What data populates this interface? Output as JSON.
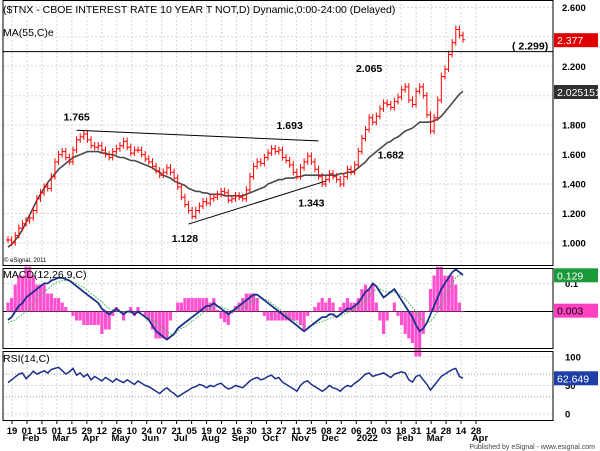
{
  "header": {
    "title": "($TNX - CBOE INTEREST RATE 10 YEAR T NOT,D) Dynamic,0:00-24:00 (Delayed)",
    "ma_label": "MA(55,C)e"
  },
  "footer": {
    "copyright": "© eSignal, 2011",
    "published": "Published by eSignal - www.esignal.com"
  },
  "colors": {
    "grid": "#d7d7d7",
    "price": "#ff0000",
    "ma": "#4a4a4a",
    "macd": "#1a2f8a",
    "signal": "#2fb84a",
    "hist": "#ff50d0",
    "rsi": "#1a2f8a",
    "tag_current": "#e00000",
    "tag_ma": "#303030",
    "tag_macd": "#1a9a3a",
    "tag_hist": "#ff40c0",
    "tag_rsi": "#1f3fa8"
  },
  "chart_data": [
    {
      "type": "candlestick",
      "panel": "price",
      "ylim": [
        0.85,
        2.65
      ],
      "y_ticks": [
        "2.600",
        "2.400",
        "2.200",
        "2.000",
        "1.800",
        "1.600",
        "1.400",
        "1.200",
        "1.000"
      ],
      "current_price": "2.377",
      "current_value": 2.377,
      "ma_value": "2.025151",
      "ma_value_num": 2.025,
      "level_label": "( 2.299)",
      "level": 2.299,
      "annotations": [
        {
          "text": "1.765",
          "value": 1.765
        },
        {
          "text": "1.693",
          "value": 1.693
        },
        {
          "text": "1.343",
          "value": 1.343
        },
        {
          "text": "1.128",
          "value": 1.128
        },
        {
          "text": "2.065",
          "value": 2.065
        },
        {
          "text": "1.682",
          "value": 1.682
        }
      ],
      "series": [
        {
          "name": "$TNX",
          "values": [
            1.02,
            1.0,
            1.05,
            1.1,
            1.13,
            1.15,
            1.17,
            1.22,
            1.3,
            1.34,
            1.38,
            1.37,
            1.45,
            1.55,
            1.6,
            1.62,
            1.58,
            1.55,
            1.63,
            1.7,
            1.72,
            1.74,
            1.7,
            1.66,
            1.65,
            1.66,
            1.63,
            1.6,
            1.58,
            1.62,
            1.64,
            1.66,
            1.69,
            1.65,
            1.61,
            1.63,
            1.63,
            1.6,
            1.57,
            1.55,
            1.52,
            1.49,
            1.46,
            1.48,
            1.51,
            1.48,
            1.44,
            1.38,
            1.31,
            1.26,
            1.22,
            1.18,
            1.22,
            1.25,
            1.28,
            1.27,
            1.3,
            1.31,
            1.33,
            1.35,
            1.34,
            1.29,
            1.3,
            1.32,
            1.31,
            1.3,
            1.36,
            1.45,
            1.52,
            1.55,
            1.54,
            1.58,
            1.61,
            1.64,
            1.62,
            1.63,
            1.58,
            1.56,
            1.53,
            1.48,
            1.45,
            1.51,
            1.55,
            1.59,
            1.55,
            1.5,
            1.45,
            1.4,
            1.43,
            1.47,
            1.45,
            1.43,
            1.4,
            1.45,
            1.5,
            1.48,
            1.53,
            1.62,
            1.71,
            1.77,
            1.85,
            1.82,
            1.86,
            1.91,
            1.95,
            1.94,
            1.92,
            1.96,
            1.99,
            2.04,
            2.06,
            1.97,
            1.94,
            2.03,
            2.06,
            2.0,
            1.87,
            1.76,
            1.85,
            1.97,
            2.13,
            2.18,
            2.28,
            2.36,
            2.45,
            2.41,
            2.38
          ]
        },
        {
          "name": "MA(55,C)e",
          "values": [
            0.97,
            0.99,
            1.02,
            1.05,
            1.09,
            1.14,
            1.19,
            1.24,
            1.29,
            1.33,
            1.37,
            1.41,
            1.44,
            1.47,
            1.5,
            1.52,
            1.54,
            1.56,
            1.58,
            1.59,
            1.6,
            1.61,
            1.62,
            1.62,
            1.62,
            1.62,
            1.61,
            1.61,
            1.6,
            1.6,
            1.59,
            1.58,
            1.58,
            1.57,
            1.56,
            1.56,
            1.55,
            1.54,
            1.53,
            1.52,
            1.51,
            1.49,
            1.48,
            1.46,
            1.45,
            1.44,
            1.42,
            1.41,
            1.4,
            1.39,
            1.37,
            1.36,
            1.35,
            1.35,
            1.34,
            1.34,
            1.33,
            1.33,
            1.33,
            1.33,
            1.32,
            1.32,
            1.32,
            1.32,
            1.32,
            1.32,
            1.33,
            1.34,
            1.35,
            1.36,
            1.37,
            1.38,
            1.4,
            1.41,
            1.42,
            1.43,
            1.43,
            1.44,
            1.44,
            1.44,
            1.45,
            1.45,
            1.46,
            1.46,
            1.46,
            1.46,
            1.46,
            1.46,
            1.46,
            1.46,
            1.46,
            1.46,
            1.47,
            1.47,
            1.48,
            1.48,
            1.49,
            1.51,
            1.53,
            1.55,
            1.58,
            1.6,
            1.62,
            1.64,
            1.66,
            1.68,
            1.69,
            1.71,
            1.72,
            1.74,
            1.76,
            1.77,
            1.78,
            1.8,
            1.82,
            1.82,
            1.82,
            1.82,
            1.83,
            1.84,
            1.86,
            1.89,
            1.92,
            1.95,
            1.98,
            2.01,
            2.03
          ]
        }
      ]
    },
    {
      "type": "line",
      "panel": "macd",
      "title": "MACD(12,26,9,C)",
      "ylim": [
        -0.13,
        0.155
      ],
      "y_ticks": [
        "0.1"
      ],
      "y_tick_values": [
        0.1
      ],
      "zero_line": 0,
      "value_label": "0.129",
      "value": 0.129,
      "hist_label": "0.003",
      "hist_value": 0.003,
      "series": [
        {
          "name": "MACD",
          "values": [
            -0.03,
            -0.02,
            0.0,
            0.02,
            0.03,
            0.05,
            0.06,
            0.07,
            0.08,
            0.09,
            0.1,
            0.1,
            0.11,
            0.115,
            0.12,
            0.12,
            0.115,
            0.11,
            0.1,
            0.09,
            0.08,
            0.07,
            0.06,
            0.05,
            0.04,
            0.03,
            0.01,
            0.0,
            -0.01,
            0.0,
            0.01,
            0.0,
            -0.01,
            0.0,
            0.0,
            -0.01,
            0.0,
            -0.01,
            -0.02,
            -0.03,
            -0.05,
            -0.07,
            -0.08,
            -0.09,
            -0.1,
            -0.09,
            -0.08,
            -0.06,
            -0.05,
            -0.04,
            -0.03,
            -0.02,
            -0.01,
            0.0,
            0.01,
            0.02,
            0.02,
            0.03,
            0.02,
            0.01,
            0.0,
            -0.01,
            0.0,
            0.01,
            0.02,
            0.03,
            0.04,
            0.05,
            0.06,
            0.06,
            0.05,
            0.04,
            0.03,
            0.02,
            0.01,
            0.0,
            -0.01,
            -0.02,
            -0.03,
            -0.04,
            -0.05,
            -0.06,
            -0.07,
            -0.06,
            -0.05,
            -0.04,
            -0.03,
            -0.02,
            -0.02,
            -0.01,
            -0.01,
            -0.02,
            -0.01,
            0.0,
            0.01,
            0.01,
            0.02,
            0.03,
            0.05,
            0.07,
            0.08,
            0.1,
            0.09,
            0.07,
            0.05,
            0.06,
            0.07,
            0.08,
            0.06,
            0.04,
            0.02,
            0.0,
            -0.02,
            -0.05,
            -0.07,
            -0.06,
            -0.04,
            -0.01,
            0.02,
            0.05,
            0.08,
            0.1,
            0.12,
            0.14,
            0.15,
            0.14,
            0.13
          ]
        },
        {
          "name": "Signal",
          "values": [
            -0.04,
            -0.035,
            -0.03,
            -0.02,
            -0.01,
            0.0,
            0.01,
            0.03,
            0.05,
            0.06,
            0.07,
            0.08,
            0.09,
            0.1,
            0.105,
            0.11,
            0.11,
            0.11,
            0.105,
            0.1,
            0.09,
            0.085,
            0.075,
            0.065,
            0.055,
            0.045,
            0.035,
            0.02,
            0.01,
            0.005,
            0.005,
            0.0,
            0.0,
            0.0,
            -0.005,
            -0.005,
            -0.005,
            -0.01,
            -0.015,
            -0.02,
            -0.03,
            -0.04,
            -0.05,
            -0.06,
            -0.07,
            -0.08,
            -0.08,
            -0.07,
            -0.06,
            -0.055,
            -0.045,
            -0.035,
            -0.025,
            -0.015,
            -0.005,
            0.005,
            0.01,
            0.015,
            0.018,
            0.018,
            0.012,
            0.005,
            0.002,
            0.004,
            0.01,
            0.015,
            0.02,
            0.03,
            0.04,
            0.045,
            0.05,
            0.045,
            0.04,
            0.03,
            0.02,
            0.01,
            0.0,
            -0.01,
            -0.02,
            -0.03,
            -0.04,
            -0.045,
            -0.05,
            -0.055,
            -0.05,
            -0.045,
            -0.04,
            -0.035,
            -0.03,
            -0.025,
            -0.02,
            -0.02,
            -0.015,
            -0.01,
            -0.005,
            0.0,
            0.01,
            0.015,
            0.025,
            0.04,
            0.055,
            0.07,
            0.08,
            0.08,
            0.075,
            0.07,
            0.07,
            0.07,
            0.065,
            0.055,
            0.045,
            0.03,
            0.015,
            0.0,
            -0.02,
            -0.035,
            -0.04,
            -0.035,
            -0.02,
            0.0,
            0.03,
            0.06,
            0.08,
            0.1,
            0.12,
            0.13,
            0.13
          ]
        }
      ]
    },
    {
      "type": "line",
      "panel": "rsi",
      "title": "RSI(14,C)",
      "ylim": [
        0,
        100
      ],
      "y_ticks": [
        "100",
        "50",
        "0"
      ],
      "y_tick_values": [
        100,
        50,
        0
      ],
      "dotted_levels": [
        70,
        30
      ],
      "value_label": "62.649",
      "value": 62.649,
      "series": [
        {
          "name": "RSI",
          "values": [
            55,
            60,
            65,
            70,
            72,
            62,
            68,
            75,
            70,
            73,
            76,
            72,
            78,
            80,
            82,
            76,
            70,
            74,
            80,
            68,
            72,
            65,
            70,
            60,
            66,
            62,
            58,
            64,
            60,
            56,
            62,
            58,
            55,
            60,
            56,
            52,
            58,
            54,
            50,
            48,
            44,
            40,
            36,
            42,
            46,
            40,
            36,
            30,
            34,
            38,
            42,
            46,
            48,
            52,
            50,
            46,
            50,
            48,
            52,
            54,
            48,
            44,
            46,
            50,
            48,
            46,
            52,
            58,
            62,
            64,
            60,
            62,
            66,
            68,
            62,
            64,
            56,
            52,
            48,
            44,
            40,
            50,
            56,
            58,
            52,
            48,
            44,
            40,
            44,
            50,
            46,
            44,
            40,
            46,
            50,
            48,
            54,
            58,
            64,
            70,
            72,
            66,
            68,
            70,
            72,
            68,
            64,
            70,
            72,
            74,
            72,
            60,
            56,
            66,
            68,
            60,
            52,
            42,
            50,
            58,
            66,
            70,
            74,
            78,
            80,
            66,
            62.649
          ]
        }
      ]
    },
    {
      "type": "axis",
      "panel": "dates",
      "x_day_labels": [
        "19",
        "01",
        "15",
        "01",
        "15",
        "29",
        "12",
        "26",
        "10",
        "24",
        "07",
        "21",
        "05",
        "19",
        "02",
        "16",
        "30",
        "13",
        "27",
        "11",
        "25",
        "08",
        "22",
        "06",
        "20",
        "03",
        "18",
        "31",
        "14",
        "28",
        "14",
        "28"
      ],
      "x_month_labels": [
        "Feb",
        "Mar",
        "Apr",
        "May",
        "Jun",
        "Jul",
        "Aug",
        "Sep",
        "Oct",
        "Nov",
        "Dec",
        "2022",
        "Feb",
        "Mar",
        "Apr"
      ]
    }
  ]
}
